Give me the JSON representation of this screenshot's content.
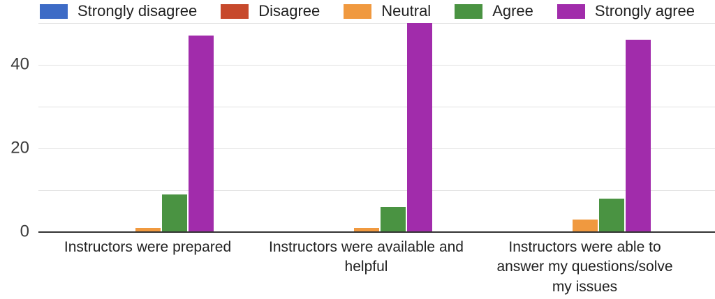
{
  "chart_data": {
    "type": "bar",
    "title": "",
    "categories": [
      "Instructors were prepared",
      "Instructors were available and\nhelpful",
      "Instructors were able to\nanswer my questions/solve\nmy issues"
    ],
    "series": [
      {
        "name": "Strongly disagree",
        "color": "#3D6BC6",
        "values": [
          0,
          0,
          0
        ]
      },
      {
        "name": "Disagree",
        "color": "#C7492C",
        "values": [
          0,
          0,
          0
        ]
      },
      {
        "name": "Neutral",
        "color": "#F0993F",
        "values": [
          1,
          1,
          3
        ]
      },
      {
        "name": "Agree",
        "color": "#4A9342",
        "values": [
          9,
          6,
          8
        ]
      },
      {
        "name": "Strongly agree",
        "color": "#A12CAB",
        "values": [
          47,
          50,
          46
        ]
      }
    ],
    "ylim": [
      0,
      50
    ],
    "yticks": [
      0,
      20,
      40
    ],
    "gridline_step": 10,
    "grid": true,
    "legend_position": "top",
    "xlabel": "",
    "ylabel": ""
  },
  "colors": {
    "gridline": "#e0e0e0",
    "axis_line": "#333333",
    "tick_text": "#3c3c3c",
    "label_text": "#222222",
    "legend_text": "#212121",
    "background": "#ffffff"
  }
}
